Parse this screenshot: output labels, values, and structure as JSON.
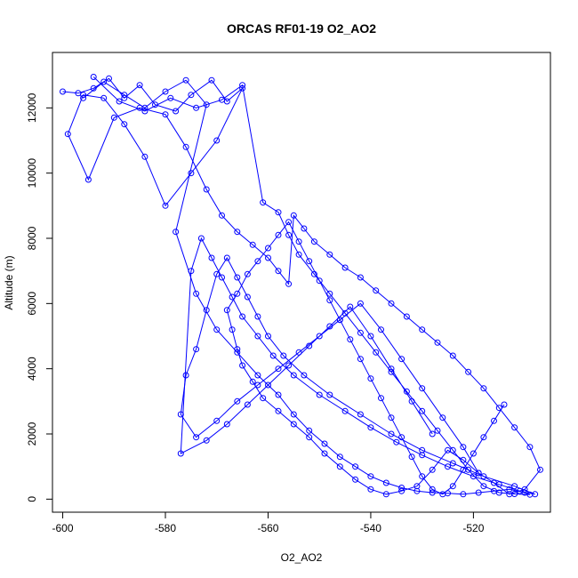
{
  "chart_data": {
    "type": "scatter",
    "style": "points-and-lines",
    "title": "ORCAS RF01-19 O2_AO2",
    "xlabel": "O2_AO2",
    "ylabel": "Altitude (m)",
    "xlim": [
      -602,
      -505
    ],
    "ylim": [
      -400,
      13700
    ],
    "xticks": [
      -600,
      -580,
      -560,
      -540,
      -520
    ],
    "yticks": [
      0,
      2000,
      4000,
      6000,
      8000,
      10000,
      12000
    ],
    "xtick_labels": [
      "-600",
      "-580",
      "-560",
      "-540",
      "-520"
    ],
    "ytick_labels": [
      "0",
      "2000",
      "4000",
      "6000",
      "8000",
      "10000",
      "12000"
    ],
    "grid": false,
    "legend": "none",
    "colors": {
      "series": "#0000ff",
      "axes": "#000000",
      "background": "#ffffff"
    },
    "series": [
      {
        "name": "",
        "x": [
          -600,
          -597,
          -594,
          -591,
          -588,
          -585,
          -582,
          -578,
          -575,
          -571,
          -568,
          -565,
          -570,
          -575,
          -580,
          -584,
          -588,
          -592,
          -596,
          -599,
          -595,
          -590,
          -585,
          -580,
          -576,
          -572,
          -569,
          -566,
          -563,
          -560,
          -558,
          -556,
          -555,
          -553,
          -551,
          -548,
          -545,
          -542,
          -539,
          -536,
          -533,
          -530,
          -527,
          -524,
          -521,
          -518,
          -515,
          -512,
          -509,
          -507,
          -510,
          -513,
          -516,
          -519,
          -522,
          -525,
          -528,
          -531,
          -534,
          -537,
          -540,
          -543,
          -546,
          -549,
          -552,
          -555,
          -558,
          -561,
          -563,
          -565,
          -566,
          -567,
          -568,
          -566,
          -564,
          -562,
          -560,
          -558,
          -556,
          -554,
          -552,
          -550,
          -548,
          -546,
          -544,
          -542,
          -540,
          -538,
          -536,
          -534,
          -532,
          -530,
          -528,
          -526,
          -524,
          -522,
          -520,
          -518,
          -516,
          -514
        ],
        "y": [
          12500,
          12450,
          12600,
          12900,
          12300,
          12700,
          12100,
          11900,
          12400,
          12850,
          12200,
          12600,
          11000,
          10000,
          9000,
          10500,
          11500,
          12300,
          12400,
          11200,
          9800,
          11700,
          12000,
          11800,
          10800,
          9500,
          8700,
          8200,
          7800,
          7400,
          7000,
          6600,
          8700,
          8300,
          7900,
          7500,
          7100,
          6800,
          6400,
          6000,
          5600,
          5200,
          4800,
          4400,
          3900,
          3400,
          2800,
          2200,
          1600,
          900,
          300,
          150,
          500,
          800,
          1200,
          1500,
          900,
          400,
          250,
          150,
          300,
          600,
          1000,
          1400,
          1900,
          2300,
          2700,
          3100,
          3600,
          4100,
          4600,
          5200,
          5800,
          6300,
          6900,
          7300,
          7700,
          8100,
          8500,
          7900,
          7300,
          6700,
          6100,
          5500,
          4900,
          4300,
          3700,
          3100,
          2500,
          1900,
          1300,
          700,
          300,
          150,
          400,
          900,
          1400,
          1900,
          2400,
          2900
        ]
      },
      {
        "name": "",
        "x": [
          -596,
          -592,
          -588,
          -584,
          -580,
          -576,
          -572,
          -578,
          -574,
          -570,
          -566,
          -562,
          -558,
          -555,
          -552,
          -549,
          -546,
          -543,
          -540,
          -537,
          -534,
          -531,
          -528,
          -525,
          -522,
          -519,
          -516,
          -513,
          -510,
          -508,
          -512,
          -518,
          -524,
          -530,
          -536,
          -542,
          -548,
          -553,
          -557,
          -560,
          -562,
          -564,
          -566,
          -568,
          -570,
          -572,
          -574,
          -576,
          -577,
          -574,
          -570,
          -566,
          -562,
          -558,
          -554,
          -550,
          -546,
          -542,
          -538,
          -534,
          -530,
          -526,
          -522,
          -519
        ],
        "y": [
          12300,
          12800,
          12400,
          12000,
          12500,
          12850,
          12100,
          8200,
          6300,
          5200,
          4500,
          3800,
          3200,
          2600,
          2100,
          1700,
          1300,
          1000,
          700,
          500,
          350,
          250,
          200,
          180,
          150,
          200,
          250,
          300,
          200,
          150,
          400,
          700,
          1100,
          1500,
          2000,
          2600,
          3200,
          3800,
          4400,
          5000,
          5600,
          6200,
          6800,
          7400,
          6900,
          5800,
          4600,
          3800,
          2600,
          1900,
          2400,
          3000,
          3500,
          4000,
          4500,
          5000,
          5500,
          6000,
          5200,
          4300,
          3400,
          2500,
          1600,
          800
        ]
      },
      {
        "name": "",
        "x": [
          -594,
          -589,
          -584,
          -579,
          -574,
          -569,
          -565,
          -561,
          -558,
          -556,
          -554,
          -551,
          -548,
          -545,
          -542,
          -539,
          -536,
          -533,
          -530,
          -527,
          -524,
          -521,
          -518,
          -515,
          -512,
          -509,
          -511,
          -515,
          -520,
          -525,
          -530,
          -535,
          -540,
          -545,
          -550,
          -555,
          -559,
          -562,
          -565,
          -567,
          -569,
          -571,
          -573,
          -575,
          -577,
          -572,
          -568,
          -564,
          -560,
          -556,
          -552,
          -548,
          -544,
          -540,
          -536,
          -532,
          -528
        ],
        "y": [
          12950,
          12200,
          11900,
          12300,
          12000,
          12250,
          12700,
          9100,
          8800,
          8100,
          7500,
          6900,
          6300,
          5700,
          5100,
          4500,
          3900,
          3300,
          2700,
          2100,
          1500,
          900,
          400,
          200,
          160,
          140,
          250,
          450,
          700,
          1000,
          1350,
          1750,
          2200,
          2700,
          3200,
          3800,
          4400,
          5000,
          5600,
          6200,
          6800,
          7400,
          8000,
          7000,
          1400,
          1800,
          2300,
          2900,
          3500,
          4100,
          4700,
          5300,
          5900,
          5000,
          4000,
          3000,
          2000
        ]
      }
    ]
  }
}
